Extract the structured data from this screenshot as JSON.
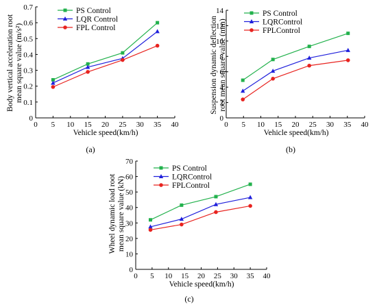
{
  "chart_data": [
    {
      "type": "line",
      "panel_label": "(a)",
      "xlabel": "Vehicle speed(km/h)",
      "ylabel_lines": [
        "Body vertical acceleration root",
        "mean square value (m/s²)"
      ],
      "xlim": [
        0,
        40
      ],
      "ylim": [
        0,
        0.7
      ],
      "xticks": [
        "0",
        "5",
        "10",
        "15",
        "20",
        "25",
        "30",
        "35",
        "40"
      ],
      "yticks": [
        "0",
        "0.1",
        "0.2",
        "0.3",
        "0.4",
        "0.5",
        "0.6",
        "0.7"
      ],
      "legend_position": "top-left",
      "series": [
        {
          "name": "PS Control",
          "color": "#22b14c",
          "marker": "square",
          "x": [
            5,
            15,
            25,
            35
          ],
          "y": [
            0.24,
            0.34,
            0.41,
            0.6
          ]
        },
        {
          "name": "LQR Control",
          "color": "#1f1fdb",
          "marker": "triangle",
          "x": [
            5,
            15,
            25,
            35
          ],
          "y": [
            0.22,
            0.32,
            0.375,
            0.545
          ]
        },
        {
          "name": "FPL Control",
          "color": "#e8231f",
          "marker": "circle",
          "x": [
            5,
            15,
            25,
            35
          ],
          "y": [
            0.195,
            0.29,
            0.365,
            0.455
          ]
        }
      ]
    },
    {
      "type": "line",
      "panel_label": "(b)",
      "xlabel": "Vehicle speed(km/h)",
      "ylabel_lines": [
        "Suspension dynamic deflection",
        "root mean square value (mm)"
      ],
      "xlim": [
        0,
        40
      ],
      "ylim": [
        0,
        14
      ],
      "xticks": [
        "0",
        "5",
        "10",
        "15",
        "20",
        "25",
        "30",
        "35",
        "40"
      ],
      "yticks": [
        "0",
        "2",
        "4",
        "6",
        "8",
        "10",
        "12",
        "14"
      ],
      "legend_position": "top-left",
      "series": [
        {
          "name": "PS Control",
          "color": "#22b14c",
          "marker": "square",
          "x": [
            4.8,
            13.5,
            24,
            35.2
          ],
          "y": [
            4.9,
            7.6,
            9.3,
            11.0
          ]
        },
        {
          "name": "LQRControl",
          "color": "#1f1fdb",
          "marker": "triangle",
          "x": [
            4.8,
            13.5,
            24,
            35.2
          ],
          "y": [
            3.5,
            6.1,
            7.8,
            8.8
          ]
        },
        {
          "name": "FPLControl",
          "color": "#e8231f",
          "marker": "circle",
          "x": [
            4.8,
            13.5,
            24,
            35.2
          ],
          "y": [
            2.4,
            5.1,
            6.8,
            7.5
          ]
        }
      ]
    },
    {
      "type": "line",
      "panel_label": "(c)",
      "xlabel": "Vehicle speed(km/h)",
      "ylabel_lines": [
        "Wheel dynamic load root",
        "mean square value (kN)"
      ],
      "xlim": [
        0,
        40
      ],
      "ylim": [
        0,
        70
      ],
      "xticks": [
        "0",
        "5",
        "10",
        "15",
        "20",
        "25",
        "30",
        "35",
        "40"
      ],
      "yticks": [
        "0",
        "10",
        "20",
        "30",
        "40",
        "50",
        "60",
        "70"
      ],
      "legend_position": "top-left",
      "series": [
        {
          "name": "PS Control",
          "color": "#22b14c",
          "marker": "square",
          "x": [
            4.5,
            14,
            24.5,
            35
          ],
          "y": [
            32,
            41.5,
            47,
            55
          ]
        },
        {
          "name": "LQRControl",
          "color": "#1f1fdb",
          "marker": "triangle",
          "x": [
            4.5,
            14,
            24.5,
            35
          ],
          "y": [
            27.5,
            32.5,
            42,
            46.5
          ]
        },
        {
          "name": "FPLControl",
          "color": "#e8231f",
          "marker": "circle",
          "x": [
            4.5,
            14,
            24.5,
            35
          ],
          "y": [
            25.5,
            29,
            37,
            41
          ]
        }
      ]
    }
  ]
}
